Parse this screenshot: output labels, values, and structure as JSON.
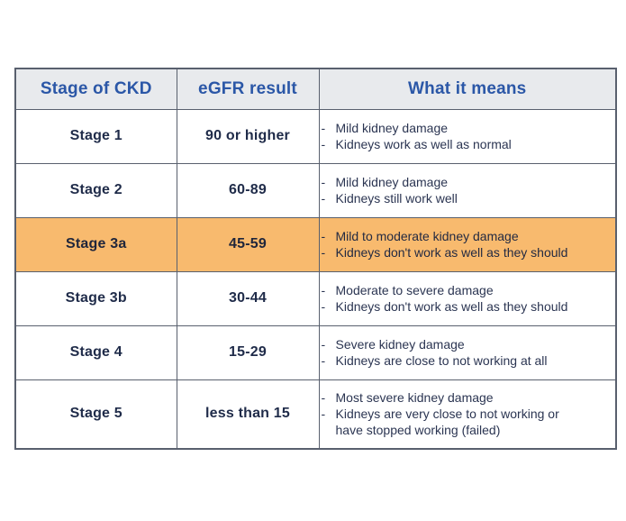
{
  "table": {
    "headers": [
      {
        "label": "Stage of CKD"
      },
      {
        "label": "eGFR result"
      },
      {
        "label": "What it means"
      }
    ],
    "rows": [
      {
        "stage": "Stage 1",
        "egfr": "90 or higher",
        "meaning": [
          "Mild kidney damage",
          "Kidneys work as well as normal"
        ],
        "highlighted": false
      },
      {
        "stage": "Stage 2",
        "egfr": "60-89",
        "meaning": [
          "Mild kidney damage",
          "Kidneys still work well"
        ],
        "highlighted": false
      },
      {
        "stage": "Stage 3a",
        "egfr": "45-59",
        "meaning": [
          "Mild to moderate kidney damage",
          "Kidneys don't work as well as they should"
        ],
        "highlighted": true
      },
      {
        "stage": "Stage 3b",
        "egfr": "30-44",
        "meaning": [
          "Moderate to severe damage",
          "Kidneys don't work as well as they should"
        ],
        "highlighted": false
      },
      {
        "stage": "Stage 4",
        "egfr": "15-29",
        "meaning": [
          "Severe kidney damage",
          "Kidneys are close to not working at all"
        ],
        "highlighted": false
      },
      {
        "stage": "Stage 5",
        "egfr": "less than 15",
        "meaning": [
          "Most severe kidney damage",
          "Kidneys are very close to not working or have stopped working (failed)"
        ],
        "highlighted": false
      }
    ],
    "bullet_char": "-"
  },
  "colors": {
    "highlight_row_bg": "#f8ba6e",
    "header_bg": "#e8eaed",
    "header_text": "#2b57a7",
    "body_text": "#1f2b49",
    "border": "#59606e",
    "page_bg": "#ffffff"
  }
}
